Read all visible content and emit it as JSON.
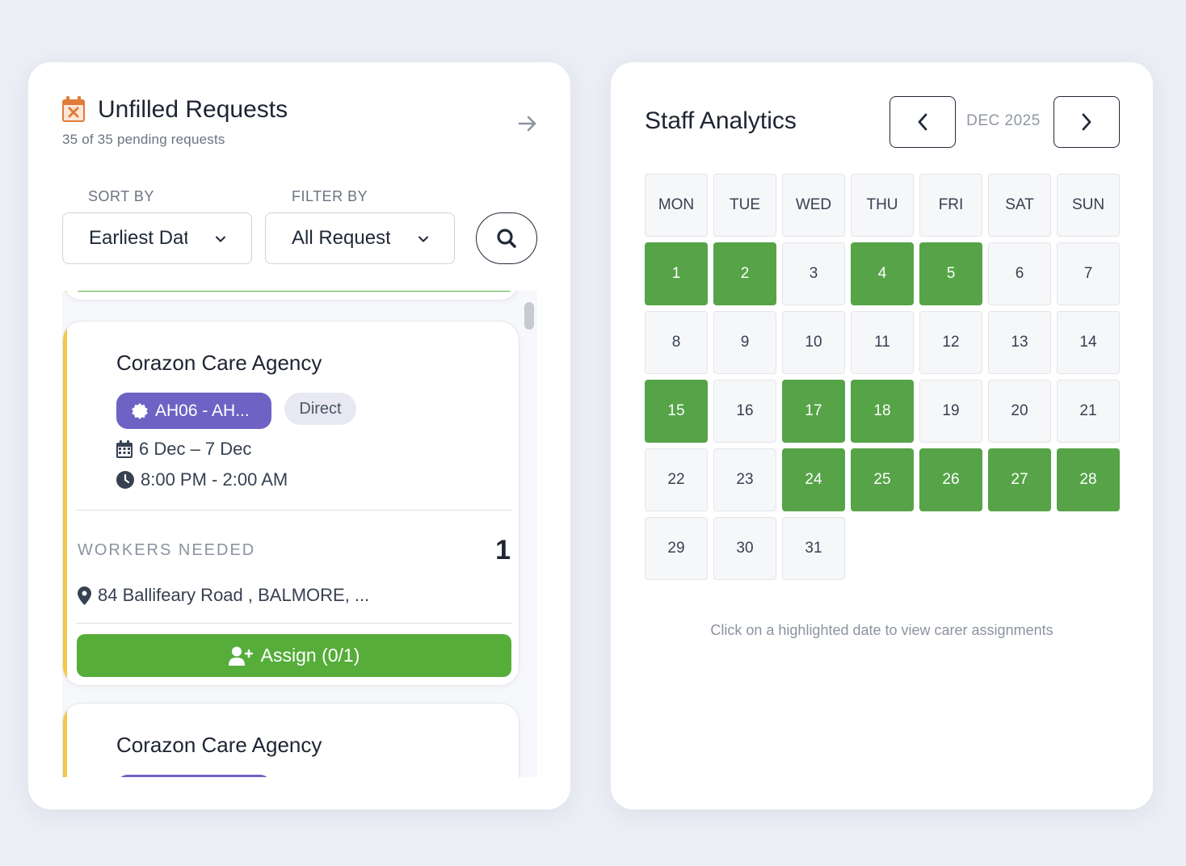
{
  "unfilled": {
    "title": "Unfilled Requests",
    "subtitle": "35 of 35 pending requests",
    "header_icon": "calendar-x-icon",
    "accent_color": "#e07b39",
    "sort_label": "SORT BY",
    "sort_value": "Earliest Date",
    "filter_label": "FILTER BY",
    "filter_value": "All Requests",
    "cards": [
      {
        "agency": "Corazon Care Agency",
        "code_badge": "AH06 - AH...",
        "type_badge": "Direct",
        "date_range": "6 Dec – 7 Dec",
        "time_range": "8:00 PM - 2:00 AM",
        "workers_label": "WORKERS NEEDED",
        "workers_count": "1",
        "address": "84 Ballifeary Road , BALMORE, ...",
        "assign_label": "Assign (0/1)"
      },
      {
        "agency": "Corazon Care Agency"
      }
    ]
  },
  "analytics": {
    "title": "Staff Analytics",
    "month": "DEC 2025",
    "weekdays": [
      "MON",
      "TUE",
      "WED",
      "THU",
      "FRI",
      "SAT",
      "SUN"
    ],
    "days": [
      1,
      2,
      3,
      4,
      5,
      6,
      7,
      8,
      9,
      10,
      11,
      12,
      13,
      14,
      15,
      16,
      17,
      18,
      19,
      20,
      21,
      22,
      23,
      24,
      25,
      26,
      27,
      28,
      29,
      30,
      31
    ],
    "first_weekday_index": 0,
    "highlighted_days": [
      1,
      2,
      4,
      5,
      15,
      17,
      18,
      24,
      25,
      26,
      27,
      28
    ],
    "highlight_color": "#56a447",
    "hint": "Click on a highlighted date to view carer assignments"
  }
}
